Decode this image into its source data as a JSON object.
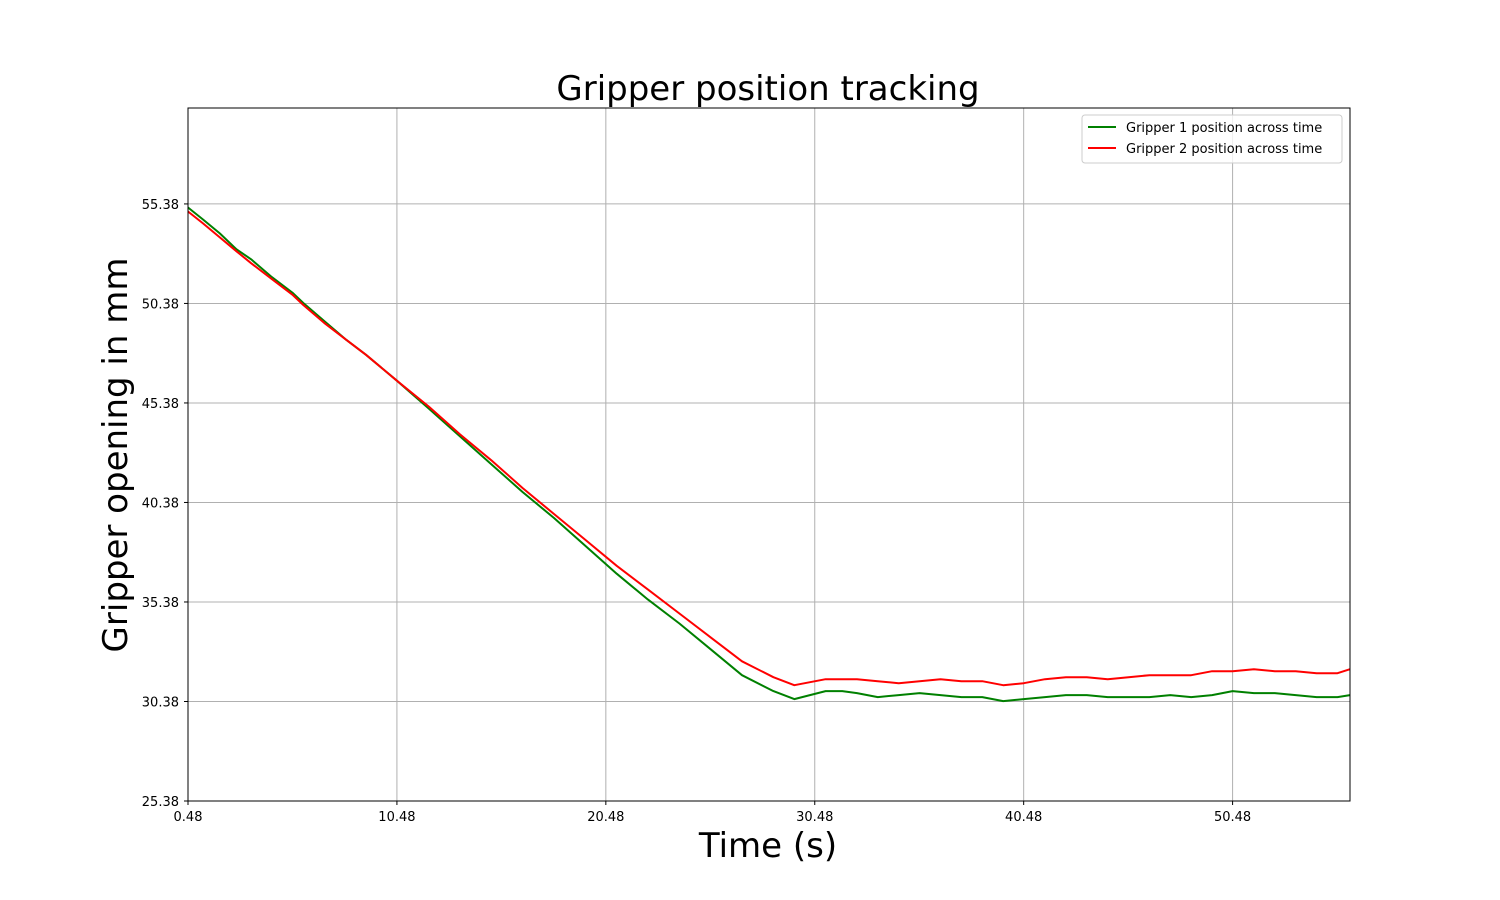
{
  "chart_data": {
    "type": "line",
    "title": "Gripper position tracking",
    "xlabel": "Time (s)",
    "ylabel": "Gripper opening in mm",
    "xlim": [
      0.48,
      56.1
    ],
    "ylim": [
      25.38,
      60.2
    ],
    "x_ticks": [
      "0.48",
      "10.48",
      "20.48",
      "30.48",
      "40.48",
      "50.48"
    ],
    "y_ticks": [
      "25.38",
      "30.38",
      "35.38",
      "40.38",
      "45.38",
      "50.38",
      "55.38"
    ],
    "grid": true,
    "legend_position": "top-right",
    "series": [
      {
        "name": "Gripper 1 position across time",
        "color": "#008000",
        "x": [
          0.48,
          1.2,
          2.0,
          2.8,
          3.5,
          4.5,
          5.5,
          6.0,
          7.0,
          8.0,
          9.0,
          10.48,
          12.0,
          13.5,
          15.0,
          16.5,
          18.0,
          19.5,
          21.0,
          22.5,
          24.0,
          25.5,
          27.0,
          28.5,
          29.5,
          31.0,
          31.8,
          32.5,
          33.5,
          34.5,
          35.5,
          36.5,
          37.5,
          38.5,
          39.5,
          40.48,
          41.5,
          42.5,
          43.5,
          44.5,
          45.5,
          46.5,
          47.5,
          48.5,
          49.5,
          50.48,
          51.5,
          52.5,
          53.5,
          54.5,
          55.5,
          56.1
        ],
        "y": [
          55.2,
          54.6,
          53.9,
          53.1,
          52.6,
          51.7,
          50.9,
          50.4,
          49.5,
          48.6,
          47.8,
          46.5,
          45.1,
          43.7,
          42.3,
          40.9,
          39.6,
          38.2,
          36.8,
          35.5,
          34.3,
          33.0,
          31.7,
          30.9,
          30.5,
          30.9,
          30.9,
          30.8,
          30.6,
          30.7,
          30.8,
          30.7,
          30.6,
          30.6,
          30.4,
          30.5,
          30.6,
          30.7,
          30.7,
          30.6,
          30.6,
          30.6,
          30.7,
          30.6,
          30.7,
          30.9,
          30.8,
          30.8,
          30.7,
          30.6,
          30.6,
          30.7
        ]
      },
      {
        "name": "Gripper 2 position across time",
        "color": "#ff0000",
        "x": [
          0.48,
          1.2,
          2.0,
          2.8,
          3.5,
          4.5,
          5.5,
          6.0,
          7.0,
          8.0,
          9.0,
          10.48,
          12.0,
          13.5,
          15.0,
          16.5,
          18.0,
          19.5,
          21.0,
          22.5,
          24.0,
          25.5,
          27.0,
          28.5,
          29.5,
          31.0,
          31.8,
          32.5,
          33.5,
          34.5,
          35.5,
          36.5,
          37.5,
          38.5,
          39.5,
          40.48,
          41.5,
          42.5,
          43.5,
          44.5,
          45.5,
          46.5,
          47.5,
          48.5,
          49.5,
          50.48,
          51.5,
          52.5,
          53.5,
          54.5,
          55.5,
          56.1
        ],
        "y": [
          55.0,
          54.4,
          53.7,
          53.0,
          52.4,
          51.6,
          50.8,
          50.3,
          49.4,
          48.6,
          47.8,
          46.5,
          45.2,
          43.8,
          42.5,
          41.1,
          39.8,
          38.5,
          37.2,
          36.0,
          34.8,
          33.6,
          32.4,
          31.6,
          31.2,
          31.5,
          31.5,
          31.5,
          31.4,
          31.3,
          31.4,
          31.5,
          31.4,
          31.4,
          31.2,
          31.3,
          31.5,
          31.6,
          31.6,
          31.5,
          31.6,
          31.7,
          31.7,
          31.7,
          31.9,
          31.9,
          32.0,
          31.9,
          31.9,
          31.8,
          31.8,
          32.0
        ]
      }
    ]
  }
}
